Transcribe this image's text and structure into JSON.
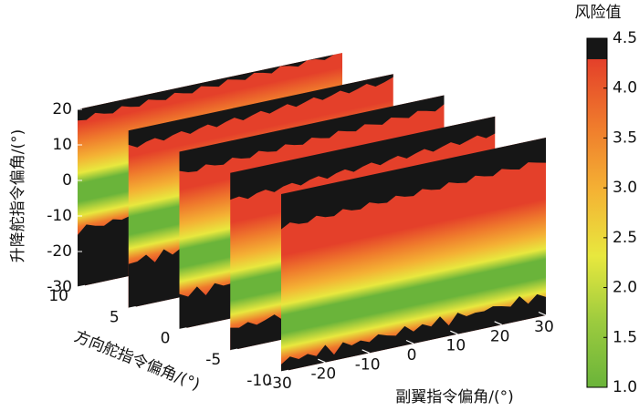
{
  "chart_data": {
    "type": "slice3d",
    "colorbar_title": "风险值",
    "xlabel": "副翼指令偏角/(°)",
    "ylabel": "方向舵指令偏角/(°)",
    "zlabel": "升降舵指令偏角/(°)",
    "xlim": [
      -30,
      30
    ],
    "xticks": [
      -30,
      -20,
      -10,
      0,
      10,
      20,
      30
    ],
    "ylim": [
      -10,
      10
    ],
    "yticks": [
      10,
      5,
      0,
      -5,
      -10
    ],
    "zlim": [
      -30,
      20
    ],
    "zticks": [
      20,
      10,
      0,
      -10,
      -20,
      -30
    ],
    "clim": [
      1.0,
      4.5
    ],
    "cticks": [
      {
        "value": 1.0,
        "label": "1.0"
      },
      {
        "value": 1.5,
        "label": "1.5"
      },
      {
        "value": 2.0,
        "label": "2.0"
      },
      {
        "value": 2.5,
        "label": "2.5"
      },
      {
        "value": 3.0,
        "label": "3.0"
      },
      {
        "value": 3.5,
        "label": "3.5"
      },
      {
        "value": 4.0,
        "label": "4.0"
      },
      {
        "value": 4.5,
        "label": "4.5"
      }
    ],
    "colors": [
      "#6ab43a",
      "#9ccb3e",
      "#e8e83e",
      "#f4b234",
      "#ef7a2c",
      "#e4402a"
    ],
    "over_color": "#161616"
  }
}
